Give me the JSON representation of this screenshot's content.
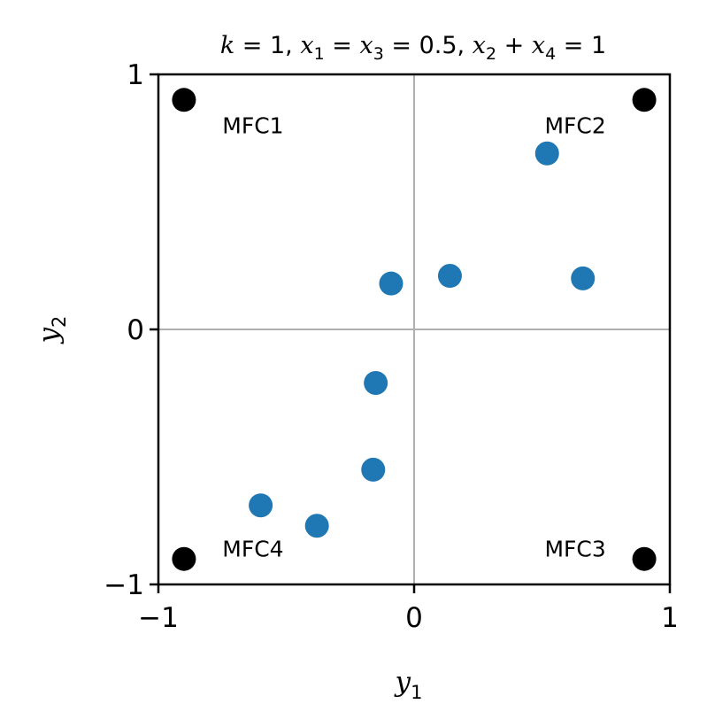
{
  "chart_data": {
    "type": "scatter",
    "title": "k = 1, x₁ = x₃ = 0.5, x₂ + x₄ = 1",
    "title_parts": [
      "k",
      " = 1, ",
      "x",
      "1",
      " = ",
      "x",
      "3",
      " = 0.5, ",
      "x",
      "2",
      " + ",
      "x",
      "4",
      " = 1"
    ],
    "xlabel": "y",
    "xlabel_sub": "1",
    "ylabel": "y",
    "ylabel_sub": "2",
    "xlim": [
      -1,
      1
    ],
    "ylim": [
      -1,
      1
    ],
    "xticks": [
      -1,
      0,
      1
    ],
    "yticks": [
      -1,
      0,
      1
    ],
    "xtick_labels": [
      "−1",
      "0",
      "1"
    ],
    "ytick_labels": [
      "−1",
      "0",
      "1"
    ],
    "grid_lines": {
      "x": 0,
      "y": 0
    },
    "series": [
      {
        "color": "#1f77b4",
        "points": [
          {
            "x": 0.52,
            "y": 0.69
          },
          {
            "x": 0.66,
            "y": 0.2
          },
          {
            "x": 0.14,
            "y": 0.21
          },
          {
            "x": -0.09,
            "y": 0.18
          },
          {
            "x": -0.15,
            "y": -0.21
          },
          {
            "x": -0.16,
            "y": -0.55
          },
          {
            "x": -0.6,
            "y": -0.69
          },
          {
            "x": -0.38,
            "y": -0.77
          }
        ]
      },
      {
        "color": "#000000",
        "points": [
          {
            "x": -0.9,
            "y": 0.9
          },
          {
            "x": 0.9,
            "y": 0.9
          },
          {
            "x": 0.9,
            "y": -0.9
          },
          {
            "x": -0.9,
            "y": -0.9
          }
        ]
      }
    ],
    "annotations": [
      {
        "text": "MFC1",
        "x": -0.75,
        "y": 0.8,
        "align": "left"
      },
      {
        "text": "MFC2",
        "x": 0.75,
        "y": 0.8,
        "align": "right"
      },
      {
        "text": "MFC3",
        "x": 0.75,
        "y": -0.86,
        "align": "right"
      },
      {
        "text": "MFC4",
        "x": -0.75,
        "y": -0.86,
        "align": "left"
      }
    ]
  }
}
